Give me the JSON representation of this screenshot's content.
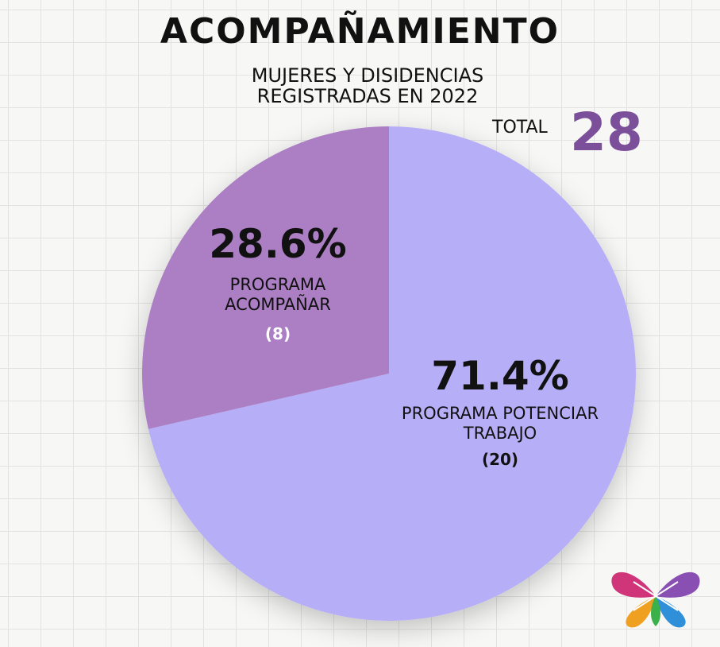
{
  "chart_data": {
    "type": "pie",
    "title": "ACOMPAÑAMIENTO",
    "subtitle": "MUJERES Y DISIDENCIAS REGISTRADAS EN 2022",
    "total_label": "TOTAL",
    "total": 28,
    "categories": [
      "PROGRAMA POTENCIAR TRABAJO",
      "PROGRAMA ACOMPAÑAR"
    ],
    "values": [
      71.4,
      28.6
    ],
    "value_labels": [
      "71.4%",
      "28.6%"
    ],
    "counts": [
      20,
      8
    ],
    "count_labels": [
      "(20)",
      "(8)"
    ],
    "colors": [
      "#b6aef6",
      "#ac7fc4"
    ]
  }
}
